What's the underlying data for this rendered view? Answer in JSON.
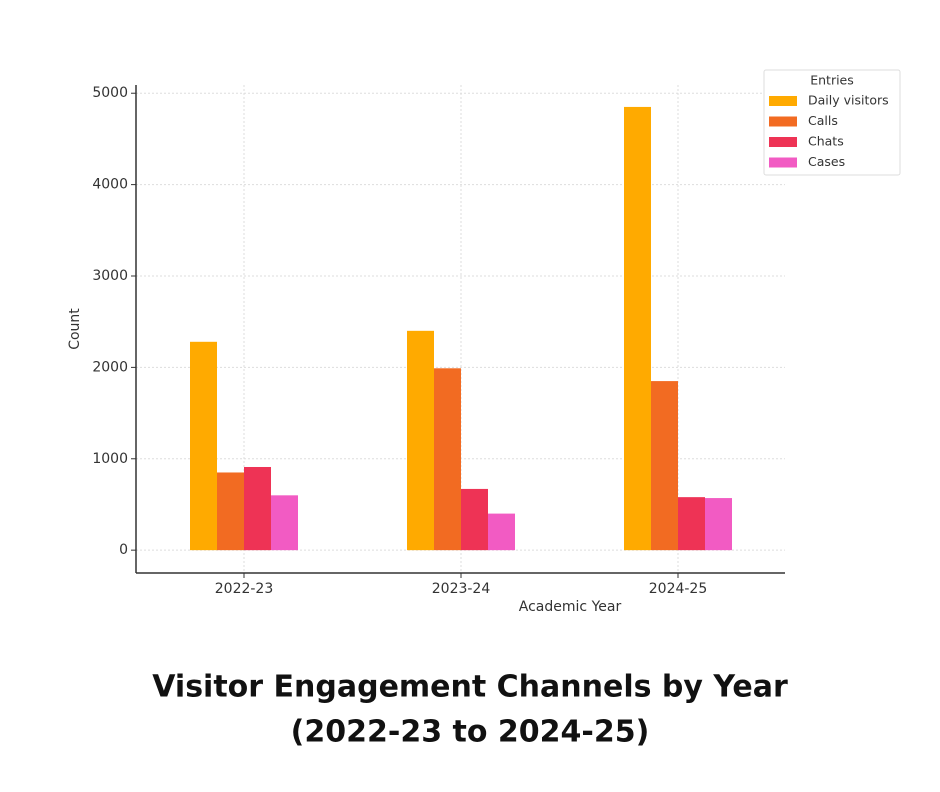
{
  "chart_data": {
    "type": "bar",
    "title": [
      "Visitor Engagement Channels by Year",
      "(2022-23 to 2024-25)"
    ],
    "x_label": "Academic Year",
    "y_label": "Count",
    "categories": [
      "2022-23",
      "2023-24",
      "2024-25"
    ],
    "series": [
      {
        "name": "Daily visitors",
        "color": "#ffaa00",
        "values": [
          2280,
          2400,
          4850
        ]
      },
      {
        "name": "Calls",
        "color": "#f26b22",
        "values": [
          850,
          1990,
          1850
        ]
      },
      {
        "name": "Chats",
        "color": "#ee3355",
        "values": [
          910,
          670,
          580
        ]
      },
      {
        "name": "Cases",
        "color": "#f25bc3",
        "values": [
          600,
          400,
          570
        ]
      }
    ],
    "legend_title": "Entries",
    "legend_position": "upper right outside",
    "ylim": [
      -250,
      5090
    ],
    "yticks": [
      0,
      1000,
      2000,
      3000,
      4000,
      5000
    ],
    "grid": true
  }
}
